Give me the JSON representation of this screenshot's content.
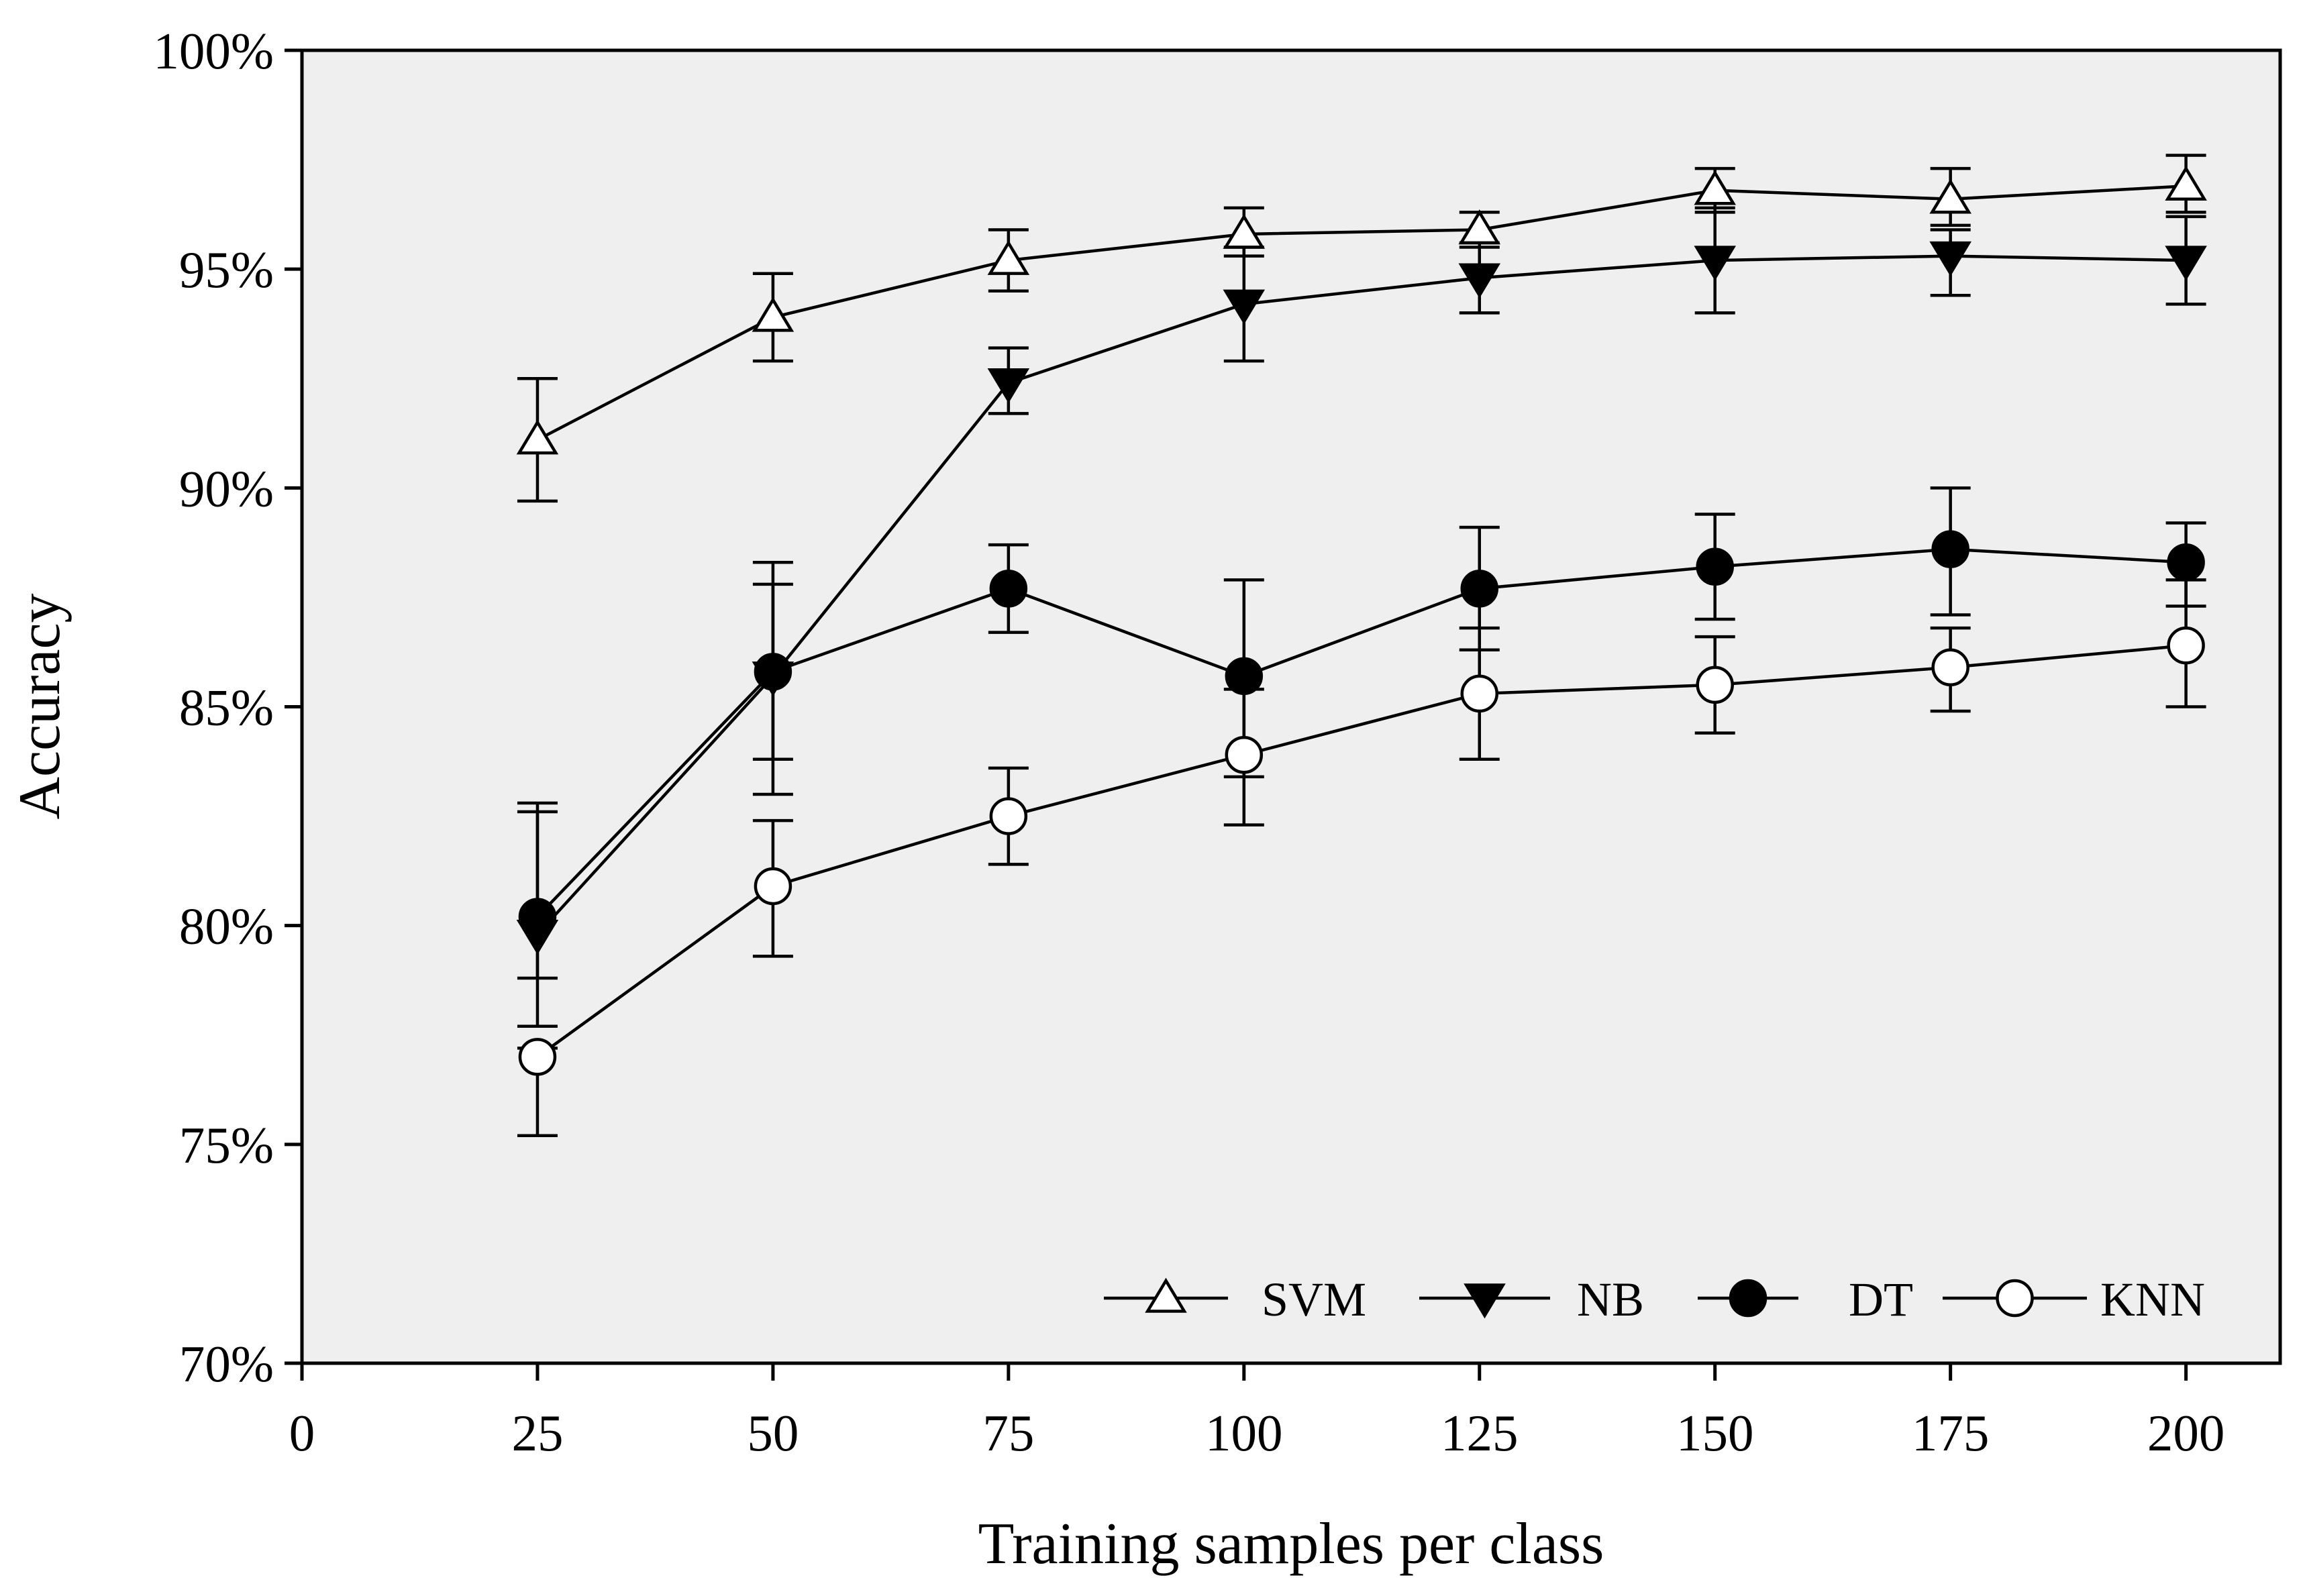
{
  "chart_data": {
    "type": "line",
    "title": "",
    "xlabel": "Training samples per class",
    "ylabel": "Accuracy",
    "xlim": [
      0,
      210
    ],
    "ylim": [
      70,
      100
    ],
    "x_ticks": [
      0,
      25,
      50,
      75,
      100,
      125,
      150,
      175,
      200
    ],
    "x_tick_labels": [
      "0",
      "25",
      "50",
      "75",
      "100",
      "125",
      "150",
      "175",
      "200"
    ],
    "y_ticks": [
      70,
      75,
      80,
      85,
      90,
      95,
      100
    ],
    "y_tick_labels": [
      "70%",
      "75%",
      "80%",
      "85%",
      "90%",
      "95%",
      "100%"
    ],
    "x": [
      25,
      50,
      75,
      100,
      125,
      150,
      175,
      200
    ],
    "legend_position": "bottom-right",
    "background": "#efefef",
    "series": [
      {
        "name": "SVM",
        "marker": "triangle-up-open",
        "values": [
          91.1,
          93.9,
          95.2,
          95.8,
          95.9,
          96.8,
          96.6,
          96.9
        ],
        "err_low": [
          89.7,
          92.9,
          94.5,
          95.3,
          95.5,
          96.3,
          96.0,
          96.3
        ],
        "err_high": [
          92.5,
          94.9,
          95.9,
          96.4,
          96.3,
          97.3,
          97.3,
          97.6
        ]
      },
      {
        "name": "NB",
        "marker": "triangle-down-filled",
        "values": [
          79.8,
          85.7,
          92.4,
          94.2,
          94.8,
          95.2,
          95.3,
          95.2
        ],
        "err_low": [
          78.8,
          83.8,
          91.7,
          92.9,
          94.0,
          94.0,
          94.4,
          94.2
        ],
        "err_high": [
          82.8,
          87.8,
          93.2,
          95.5,
          95.6,
          96.4,
          95.9,
          96.2
        ]
      },
      {
        "name": "DT",
        "marker": "circle-filled",
        "values": [
          80.2,
          85.8,
          87.7,
          85.7,
          87.7,
          88.2,
          88.6,
          88.3
        ],
        "err_low": [
          77.7,
          83.0,
          86.7,
          83.4,
          86.3,
          87.0,
          87.1,
          87.3
        ],
        "err_high": [
          82.6,
          88.3,
          88.7,
          87.9,
          89.1,
          89.4,
          90.0,
          89.2
        ]
      },
      {
        "name": "KNN",
        "marker": "circle-open",
        "values": [
          77.0,
          80.9,
          82.5,
          83.9,
          85.3,
          85.5,
          85.9,
          86.4
        ],
        "err_low": [
          75.2,
          79.3,
          81.4,
          82.3,
          83.8,
          84.4,
          84.9,
          85.0
        ],
        "err_high": [
          77.2,
          82.4,
          83.6,
          85.4,
          86.8,
          86.6,
          86.8,
          87.9
        ]
      }
    ]
  }
}
